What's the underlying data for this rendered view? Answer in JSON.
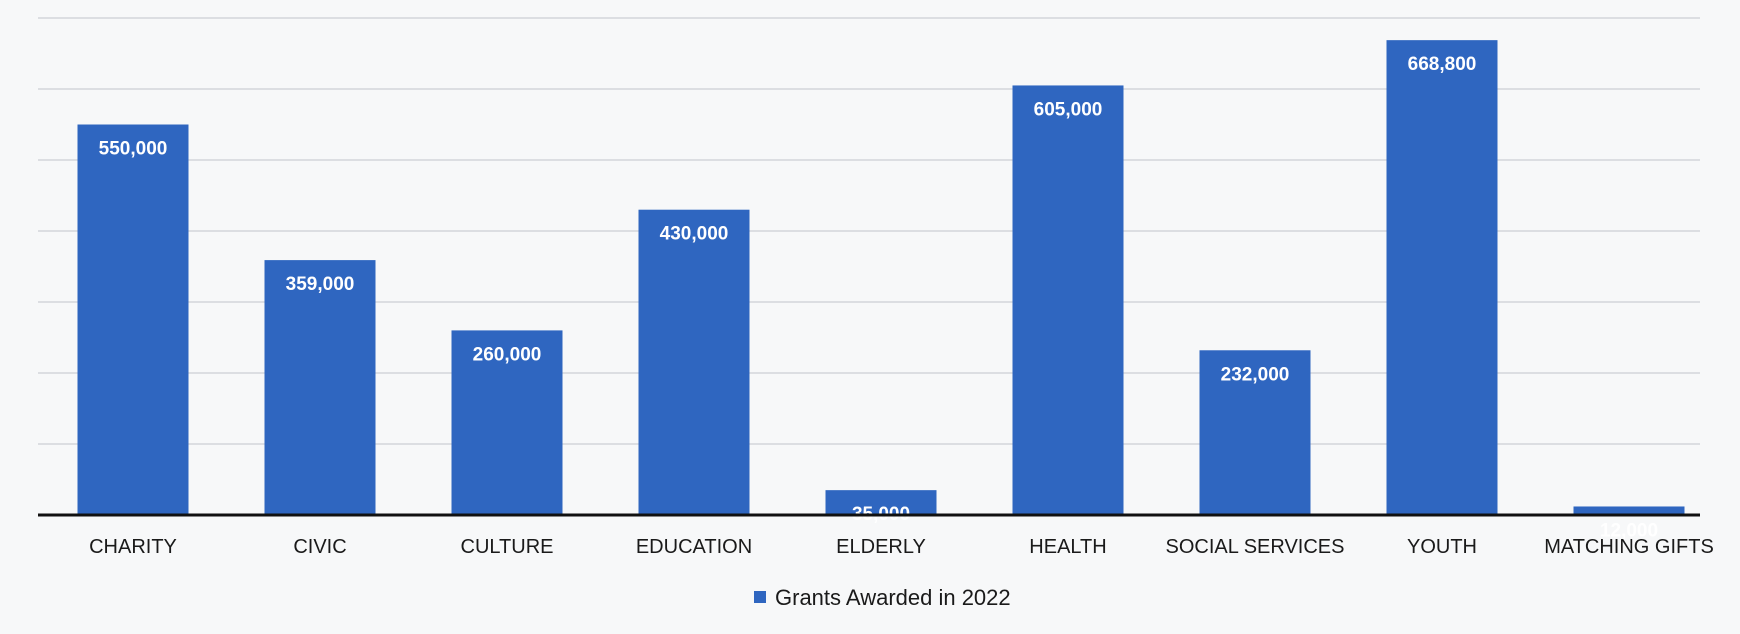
{
  "chart_data": {
    "type": "bar",
    "categories": [
      "CHARITY",
      "CIVIC",
      "CULTURE",
      "EDUCATION",
      "ELDERLY",
      "HEALTH",
      "SOCIAL SERVICES",
      "YOUTH",
      "MATCHING GIFTS"
    ],
    "series": [
      {
        "name": "Grants Awarded in 2022",
        "values": [
          550000,
          359000,
          260000,
          430000,
          35000,
          605000,
          232000,
          668800,
          12000
        ],
        "labels": [
          "550,000",
          "359,000",
          "260,000",
          "430,000",
          "35,000",
          "605,000",
          "232,000",
          "668,800",
          "12,000"
        ],
        "color": "#2f66c0"
      }
    ],
    "ylim": [
      0,
      700000
    ],
    "grid": true,
    "legend": "bottom-center"
  }
}
